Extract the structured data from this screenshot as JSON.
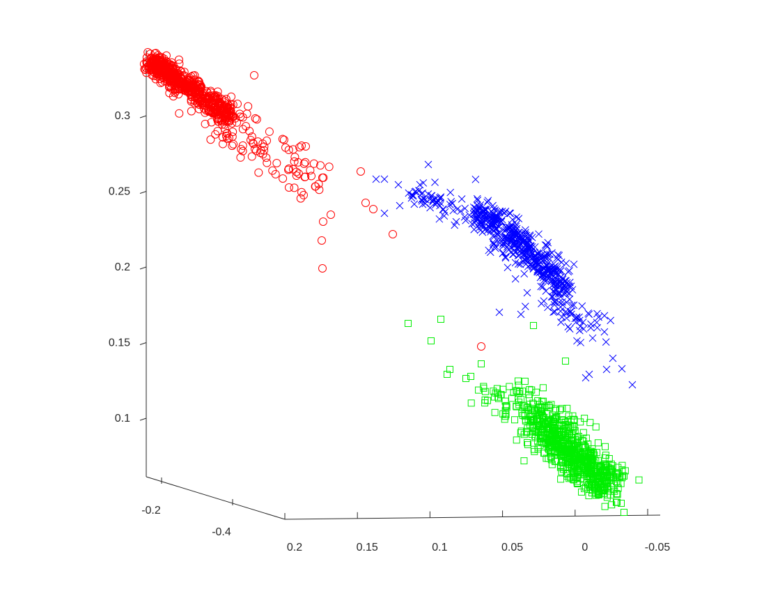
{
  "chart_data": {
    "type": "scatter",
    "projection": "3d",
    "title": "",
    "xlabel": "",
    "ylabel": "",
    "zlabel": "",
    "grid": false,
    "legend": "none",
    "axes": {
      "x": {
        "ticks": [
          0.2,
          0.15,
          0.1,
          0.05,
          0,
          -0.05
        ],
        "tick_labels": [
          "0.2",
          "0.15",
          "0.1",
          "0.05",
          "0",
          "-0.05"
        ]
      },
      "y": {
        "ticks": [
          -0.2,
          -0.4
        ],
        "tick_labels": [
          "-0.2",
          "-0.4"
        ]
      },
      "z": {
        "ticks": [
          0.3,
          0.25,
          0.2,
          0.15,
          0.1
        ],
        "tick_labels": [
          "0.3",
          "0.25",
          "0.2",
          "0.15",
          "0.1"
        ]
      }
    },
    "series": [
      {
        "marker": "circle",
        "color": "#ff0000",
        "count_approx": 900,
        "visible_extent": {
          "x": [
            0.22,
            0.1
          ],
          "z": [
            0.195,
            0.345
          ]
        },
        "notable_points": [
          {
            "x": 0.067,
            "z": 0.145
          },
          {
            "x": 0.126,
            "z": 0.22
          },
          {
            "x": 0.148,
            "z": 0.196
          },
          {
            "x": 0.152,
            "z": 0.262
          }
        ]
      },
      {
        "marker": "x",
        "color": "#0000ff",
        "count_approx": 650,
        "visible_extent": {
          "x": [
            0.105,
            -0.03
          ],
          "z": [
            0.12,
            0.267
          ]
        }
      },
      {
        "marker": "square",
        "color": "#00ee00",
        "count_approx": 900,
        "visible_extent": {
          "x": [
            0.095,
            -0.03
          ],
          "z": [
            0.05,
            0.163
          ]
        }
      }
    ]
  }
}
